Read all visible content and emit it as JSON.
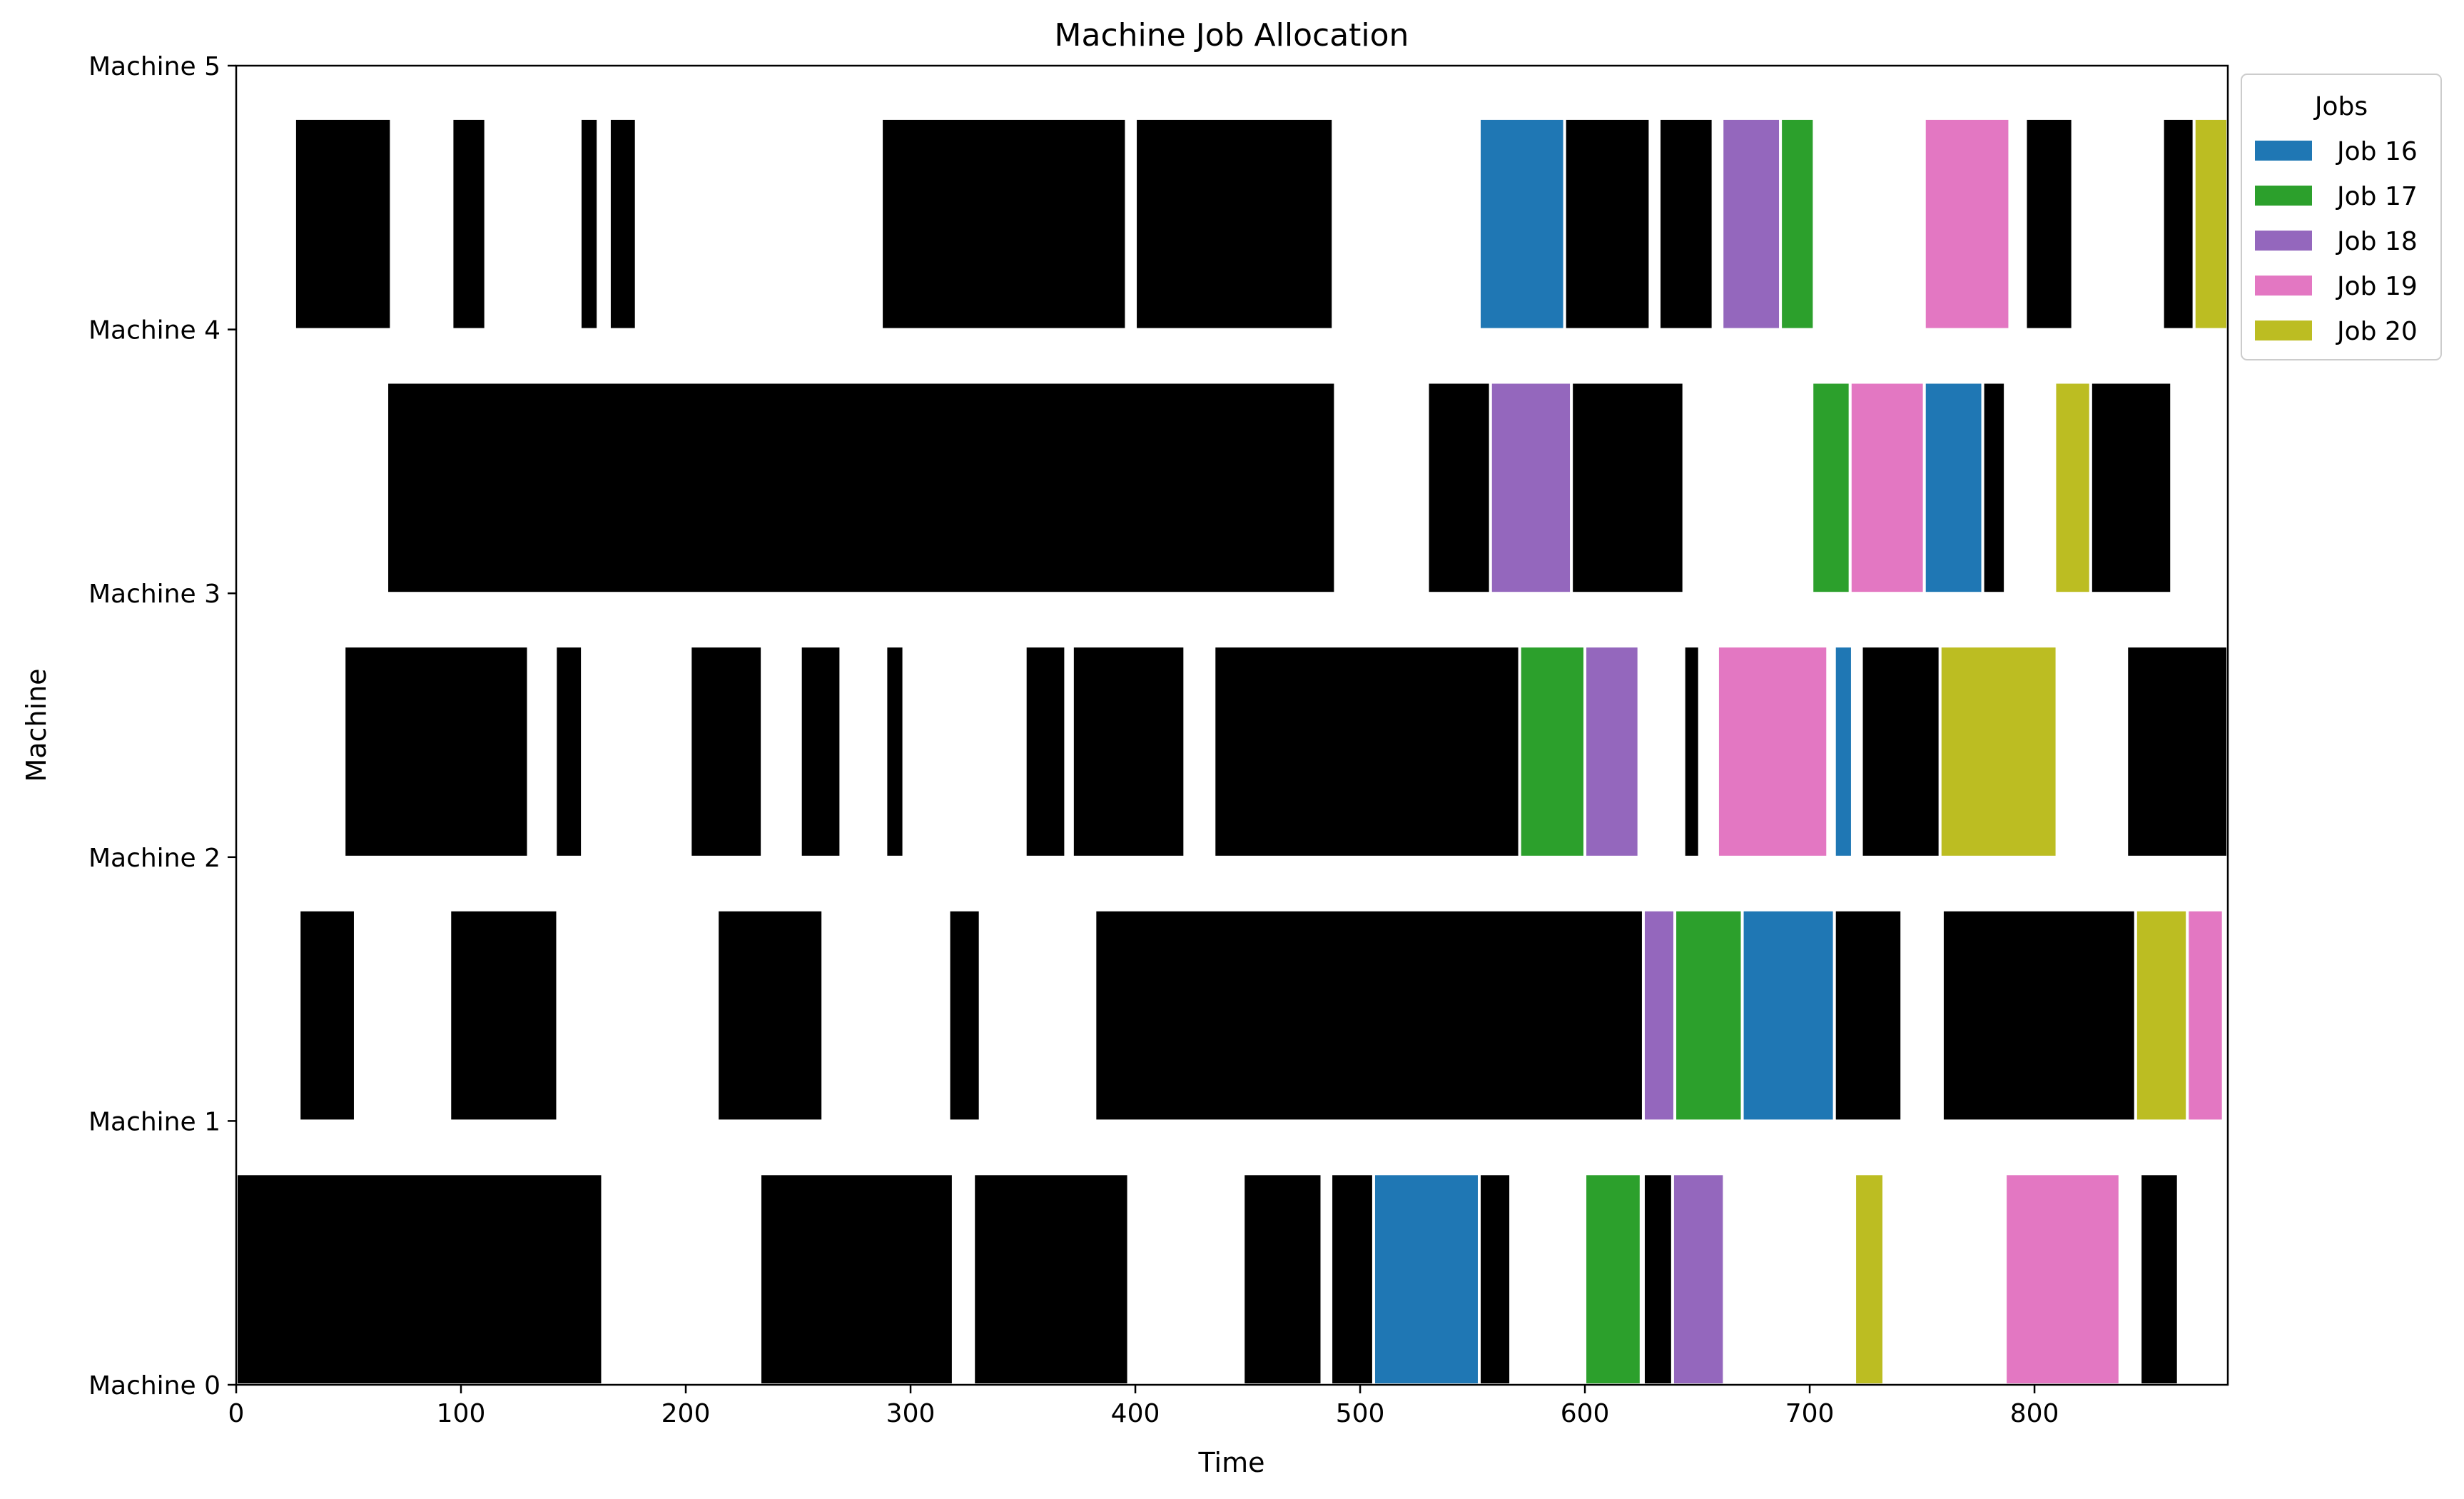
{
  "chart_data": {
    "type": "gantt",
    "title": "Machine Job Allocation",
    "xlabel": "Time",
    "ylabel": "Machine",
    "xlim": [
      0,
      886
    ],
    "ylim": [
      0,
      5
    ],
    "xticks": [
      0,
      100,
      200,
      300,
      400,
      500,
      600,
      700,
      800
    ],
    "xtick_labels": [
      "0",
      "100",
      "200",
      "300",
      "400",
      "500",
      "600",
      "700",
      "800"
    ],
    "yticks": [
      0,
      1,
      2,
      3,
      4,
      5
    ],
    "ytick_labels": [
      "Machine 0",
      "Machine 1",
      "Machine 2",
      "Machine 3",
      "Machine 4",
      "Machine 5"
    ],
    "bar_height": 0.8,
    "grid": false,
    "legend": {
      "title": "Jobs",
      "placement": "upper-left, outside right of plot",
      "entries": [
        {
          "label": "Job 16",
          "color": "#1f77b4"
        },
        {
          "label": "Job 17",
          "color": "#2ca02c"
        },
        {
          "label": "Job 18",
          "color": "#9467bd"
        },
        {
          "label": "Job 19",
          "color": "#e377c2"
        },
        {
          "label": "Job 20",
          "color": "#bcbd22"
        }
      ]
    },
    "other_color": "#000000",
    "machines": [
      {
        "machine": 0,
        "tasks": [
          {
            "start": 0,
            "end": 163,
            "job": null
          },
          {
            "start": 233,
            "end": 319,
            "job": null
          },
          {
            "start": 328,
            "end": 397,
            "job": null
          },
          {
            "start": 448,
            "end": 483,
            "job": null
          },
          {
            "start": 487,
            "end": 506,
            "job": null
          },
          {
            "start": 506,
            "end": 553,
            "job": "Job 16"
          },
          {
            "start": 553,
            "end": 567,
            "job": null
          },
          {
            "start": 600,
            "end": 625,
            "job": "Job 17"
          },
          {
            "start": 626,
            "end": 639,
            "job": null
          },
          {
            "start": 639,
            "end": 662,
            "job": "Job 18"
          },
          {
            "start": 720,
            "end": 733,
            "job": "Job 20"
          },
          {
            "start": 787,
            "end": 838,
            "job": "Job 19"
          },
          {
            "start": 847,
            "end": 864,
            "job": null
          }
        ]
      },
      {
        "machine": 1,
        "tasks": [
          {
            "start": 28,
            "end": 53,
            "job": null
          },
          {
            "start": 95,
            "end": 143,
            "job": null
          },
          {
            "start": 214,
            "end": 261,
            "job": null
          },
          {
            "start": 317,
            "end": 331,
            "job": null
          },
          {
            "start": 382,
            "end": 626,
            "job": null
          },
          {
            "start": 626,
            "end": 640,
            "job": "Job 18"
          },
          {
            "start": 640,
            "end": 670,
            "job": "Job 17"
          },
          {
            "start": 670,
            "end": 711,
            "job": "Job 16"
          },
          {
            "start": 711,
            "end": 741,
            "job": null
          },
          {
            "start": 759,
            "end": 845,
            "job": null
          },
          {
            "start": 845,
            "end": 868,
            "job": "Job 20"
          },
          {
            "start": 868,
            "end": 884,
            "job": "Job 19"
          }
        ]
      },
      {
        "machine": 2,
        "tasks": [
          {
            "start": 48,
            "end": 130,
            "job": null
          },
          {
            "start": 142,
            "end": 154,
            "job": null
          },
          {
            "start": 202,
            "end": 234,
            "job": null
          },
          {
            "start": 251,
            "end": 269,
            "job": null
          },
          {
            "start": 289,
            "end": 297,
            "job": null
          },
          {
            "start": 351,
            "end": 369,
            "job": null
          },
          {
            "start": 372,
            "end": 422,
            "job": null
          },
          {
            "start": 435,
            "end": 571,
            "job": null
          },
          {
            "start": 571,
            "end": 600,
            "job": "Job 17"
          },
          {
            "start": 600,
            "end": 624,
            "job": "Job 18"
          },
          {
            "start": 644,
            "end": 651,
            "job": null
          },
          {
            "start": 659,
            "end": 708,
            "job": "Job 19"
          },
          {
            "start": 711,
            "end": 719,
            "job": "Job 16"
          },
          {
            "start": 723,
            "end": 758,
            "job": null
          },
          {
            "start": 758,
            "end": 810,
            "job": "Job 20"
          },
          {
            "start": 841,
            "end": 886,
            "job": null
          }
        ]
      },
      {
        "machine": 3,
        "tasks": [
          {
            "start": 67,
            "end": 489,
            "job": null
          },
          {
            "start": 530,
            "end": 558,
            "job": null
          },
          {
            "start": 558,
            "end": 594,
            "job": "Job 18"
          },
          {
            "start": 594,
            "end": 644,
            "job": null
          },
          {
            "start": 701,
            "end": 718,
            "job": "Job 17"
          },
          {
            "start": 718,
            "end": 751,
            "job": "Job 19"
          },
          {
            "start": 751,
            "end": 777,
            "job": "Job 16"
          },
          {
            "start": 777,
            "end": 787,
            "job": null
          },
          {
            "start": 809,
            "end": 825,
            "job": "Job 20"
          },
          {
            "start": 825,
            "end": 861,
            "job": null
          }
        ]
      },
      {
        "machine": 4,
        "tasks": [
          {
            "start": 26,
            "end": 69,
            "job": null
          },
          {
            "start": 96,
            "end": 111,
            "job": null
          },
          {
            "start": 153,
            "end": 161,
            "job": null
          },
          {
            "start": 166,
            "end": 178,
            "job": null
          },
          {
            "start": 287,
            "end": 396,
            "job": null
          },
          {
            "start": 400,
            "end": 488,
            "job": null
          },
          {
            "start": 553,
            "end": 591,
            "job": "Job 16"
          },
          {
            "start": 591,
            "end": 629,
            "job": null
          },
          {
            "start": 633,
            "end": 657,
            "job": null
          },
          {
            "start": 661,
            "end": 687,
            "job": "Job 18"
          },
          {
            "start": 687,
            "end": 702,
            "job": "Job 17"
          },
          {
            "start": 751,
            "end": 789,
            "job": "Job 19"
          },
          {
            "start": 796,
            "end": 817,
            "job": null
          },
          {
            "start": 857,
            "end": 871,
            "job": null
          },
          {
            "start": 871,
            "end": 886,
            "job": "Job 20"
          }
        ]
      }
    ]
  }
}
